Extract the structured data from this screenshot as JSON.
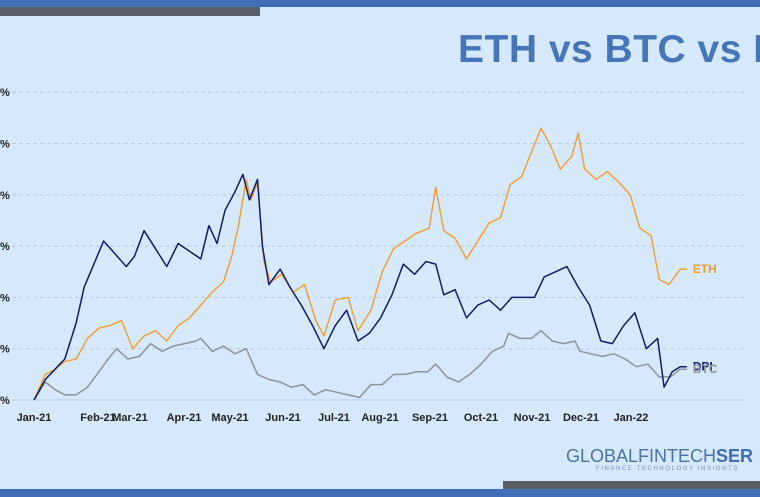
{
  "title": "ETH vs BTC vs D",
  "logo": {
    "part1": "GLOBALFINTECH",
    "part2": "SER",
    "tagline": "FINANCE TECHNOLOGY INSIGHTS"
  },
  "colors": {
    "background": "#d6e8fb",
    "top_bar_blue": "#3f6fb6",
    "top_bar_gray": "#5a5f66",
    "eth": "#f29d2a",
    "dpi": "#101b6b",
    "btc": "#8f9296",
    "grid": "#b8cadd",
    "title": "#4776b8"
  },
  "chart_data": {
    "type": "line",
    "x_tick_labels": [
      "Jan-21",
      "Feb-21",
      "Mar-21",
      "Apr-21",
      "May-21",
      "Jun-21",
      "Jul-21",
      "Aug-21",
      "Sep-21",
      "Oct-21",
      "Nov-21",
      "Dec-21",
      "Jan-22"
    ],
    "y_tick_labels": [
      "%",
      "%",
      "%",
      "%",
      "%",
      "%",
      "%"
    ],
    "y_gridlines": 7,
    "grid": "horizontal dashed",
    "legend": "inline labels at right end of each series",
    "x_start": "2021-01-01",
    "x_end": "2022-02-10",
    "series": [
      {
        "name": "ETH",
        "points": [
          [
            "2021-01-01",
            0
          ],
          [
            "2021-01-08",
            0.5
          ],
          [
            "2021-01-14",
            0.6
          ],
          [
            "2021-01-20",
            0.75
          ],
          [
            "2021-01-27",
            0.8
          ],
          [
            "2021-02-03",
            1.2
          ],
          [
            "2021-02-10",
            1.4
          ],
          [
            "2021-02-17",
            1.45
          ],
          [
            "2021-02-24",
            1.55
          ],
          [
            "2021-03-03",
            1.0
          ],
          [
            "2021-03-10",
            1.25
          ],
          [
            "2021-03-17",
            1.35
          ],
          [
            "2021-03-24",
            1.15
          ],
          [
            "2021-03-31",
            1.45
          ],
          [
            "2021-04-07",
            1.6
          ],
          [
            "2021-04-14",
            1.85
          ],
          [
            "2021-04-21",
            2.1
          ],
          [
            "2021-04-28",
            2.3
          ],
          [
            "2021-05-03",
            2.8
          ],
          [
            "2021-05-07",
            3.35
          ],
          [
            "2021-05-12",
            4.3
          ],
          [
            "2021-05-15",
            3.9
          ],
          [
            "2021-05-19",
            4.25
          ],
          [
            "2021-05-23",
            2.7
          ],
          [
            "2021-05-27",
            2.3
          ],
          [
            "2021-06-03",
            2.45
          ],
          [
            "2021-06-10",
            2.1
          ],
          [
            "2021-06-17",
            2.25
          ],
          [
            "2021-06-24",
            1.55
          ],
          [
            "2021-06-29",
            1.25
          ],
          [
            "2021-07-06",
            1.95
          ],
          [
            "2021-07-14",
            2.0
          ],
          [
            "2021-07-20",
            1.35
          ],
          [
            "2021-07-28",
            1.75
          ],
          [
            "2021-08-04",
            2.5
          ],
          [
            "2021-08-11",
            2.95
          ],
          [
            "2021-08-18",
            3.1
          ],
          [
            "2021-08-25",
            3.25
          ],
          [
            "2021-09-02",
            3.35
          ],
          [
            "2021-09-06",
            4.15
          ],
          [
            "2021-09-11",
            3.3
          ],
          [
            "2021-09-18",
            3.15
          ],
          [
            "2021-09-25",
            2.75
          ],
          [
            "2021-10-02",
            3.1
          ],
          [
            "2021-10-09",
            3.45
          ],
          [
            "2021-10-16",
            3.55
          ],
          [
            "2021-10-22",
            4.2
          ],
          [
            "2021-10-29",
            4.35
          ],
          [
            "2021-11-05",
            4.9
          ],
          [
            "2021-11-10",
            5.3
          ],
          [
            "2021-11-16",
            4.95
          ],
          [
            "2021-11-22",
            4.5
          ],
          [
            "2021-11-29",
            4.75
          ],
          [
            "2021-12-03",
            5.2
          ],
          [
            "2021-12-07",
            4.5
          ],
          [
            "2021-12-14",
            4.3
          ],
          [
            "2021-12-21",
            4.45
          ],
          [
            "2021-12-28",
            4.25
          ],
          [
            "2022-01-04",
            4.0
          ],
          [
            "2022-01-10",
            3.35
          ],
          [
            "2022-01-17",
            3.2
          ],
          [
            "2022-01-22",
            2.35
          ],
          [
            "2022-01-28",
            2.25
          ],
          [
            "2022-02-04",
            2.55
          ],
          [
            "2022-02-08",
            2.55
          ]
        ]
      },
      {
        "name": "DPI",
        "points": [
          [
            "2021-01-01",
            0
          ],
          [
            "2021-01-08",
            0.4
          ],
          [
            "2021-01-14",
            0.6
          ],
          [
            "2021-01-20",
            0.8
          ],
          [
            "2021-01-27",
            1.5
          ],
          [
            "2021-02-01",
            2.2
          ],
          [
            "2021-02-07",
            2.65
          ],
          [
            "2021-02-13",
            3.1
          ],
          [
            "2021-02-20",
            2.85
          ],
          [
            "2021-02-27",
            2.6
          ],
          [
            "2021-03-04",
            2.8
          ],
          [
            "2021-03-10",
            3.3
          ],
          [
            "2021-03-17",
            2.95
          ],
          [
            "2021-03-24",
            2.6
          ],
          [
            "2021-03-31",
            3.05
          ],
          [
            "2021-04-07",
            2.9
          ],
          [
            "2021-04-14",
            2.75
          ],
          [
            "2021-04-19",
            3.4
          ],
          [
            "2021-04-24",
            3.05
          ],
          [
            "2021-04-29",
            3.7
          ],
          [
            "2021-05-05",
            4.05
          ],
          [
            "2021-05-10",
            4.4
          ],
          [
            "2021-05-14",
            3.9
          ],
          [
            "2021-05-19",
            4.3
          ],
          [
            "2021-05-22",
            3.0
          ],
          [
            "2021-05-26",
            2.25
          ],
          [
            "2021-06-02",
            2.55
          ],
          [
            "2021-06-08",
            2.2
          ],
          [
            "2021-06-15",
            1.85
          ],
          [
            "2021-06-22",
            1.45
          ],
          [
            "2021-06-29",
            1.0
          ],
          [
            "2021-07-06",
            1.45
          ],
          [
            "2021-07-13",
            1.75
          ],
          [
            "2021-07-20",
            1.15
          ],
          [
            "2021-07-27",
            1.3
          ],
          [
            "2021-08-03",
            1.6
          ],
          [
            "2021-08-10",
            2.05
          ],
          [
            "2021-08-17",
            2.65
          ],
          [
            "2021-08-24",
            2.45
          ],
          [
            "2021-08-31",
            2.7
          ],
          [
            "2021-09-06",
            2.65
          ],
          [
            "2021-09-11",
            2.05
          ],
          [
            "2021-09-18",
            2.15
          ],
          [
            "2021-09-25",
            1.6
          ],
          [
            "2021-10-02",
            1.85
          ],
          [
            "2021-10-09",
            1.95
          ],
          [
            "2021-10-16",
            1.75
          ],
          [
            "2021-10-23",
            2.0
          ],
          [
            "2021-10-30",
            2.0
          ],
          [
            "2021-11-06",
            2.0
          ],
          [
            "2021-11-12",
            2.4
          ],
          [
            "2021-11-19",
            2.5
          ],
          [
            "2021-11-26",
            2.6
          ],
          [
            "2021-12-03",
            2.2
          ],
          [
            "2021-12-10",
            1.85
          ],
          [
            "2021-12-17",
            1.15
          ],
          [
            "2021-12-24",
            1.1
          ],
          [
            "2021-12-31",
            1.45
          ],
          [
            "2022-01-07",
            1.7
          ],
          [
            "2022-01-14",
            1.0
          ],
          [
            "2022-01-21",
            1.2
          ],
          [
            "2022-01-25",
            0.25
          ],
          [
            "2022-01-30",
            0.55
          ],
          [
            "2022-02-04",
            0.65
          ],
          [
            "2022-02-08",
            0.65
          ]
        ]
      },
      {
        "name": "BTC",
        "points": [
          [
            "2021-01-01",
            0
          ],
          [
            "2021-01-08",
            0.35
          ],
          [
            "2021-01-14",
            0.2
          ],
          [
            "2021-01-20",
            0.1
          ],
          [
            "2021-01-27",
            0.1
          ],
          [
            "2021-02-03",
            0.25
          ],
          [
            "2021-02-10",
            0.55
          ],
          [
            "2021-02-17",
            0.85
          ],
          [
            "2021-02-21",
            1.0
          ],
          [
            "2021-02-28",
            0.8
          ],
          [
            "2021-03-07",
            0.85
          ],
          [
            "2021-03-14",
            1.1
          ],
          [
            "2021-03-21",
            0.95
          ],
          [
            "2021-03-28",
            1.05
          ],
          [
            "2021-04-04",
            1.1
          ],
          [
            "2021-04-11",
            1.15
          ],
          [
            "2021-04-14",
            1.2
          ],
          [
            "2021-04-21",
            0.95
          ],
          [
            "2021-04-28",
            1.05
          ],
          [
            "2021-05-05",
            0.9
          ],
          [
            "2021-05-12",
            1.0
          ],
          [
            "2021-05-19",
            0.5
          ],
          [
            "2021-05-26",
            0.4
          ],
          [
            "2021-06-02",
            0.35
          ],
          [
            "2021-06-09",
            0.25
          ],
          [
            "2021-06-16",
            0.3
          ],
          [
            "2021-06-23",
            0.1
          ],
          [
            "2021-06-30",
            0.2
          ],
          [
            "2021-07-07",
            0.15
          ],
          [
            "2021-07-14",
            0.1
          ],
          [
            "2021-07-21",
            0.05
          ],
          [
            "2021-07-28",
            0.3
          ],
          [
            "2021-08-04",
            0.3
          ],
          [
            "2021-08-11",
            0.5
          ],
          [
            "2021-08-18",
            0.5
          ],
          [
            "2021-08-25",
            0.55
          ],
          [
            "2021-09-01",
            0.55
          ],
          [
            "2021-09-06",
            0.7
          ],
          [
            "2021-09-13",
            0.45
          ],
          [
            "2021-09-20",
            0.35
          ],
          [
            "2021-09-27",
            0.5
          ],
          [
            "2021-10-04",
            0.7
          ],
          [
            "2021-10-11",
            0.95
          ],
          [
            "2021-10-18",
            1.05
          ],
          [
            "2021-10-21",
            1.3
          ],
          [
            "2021-10-28",
            1.2
          ],
          [
            "2021-11-04",
            1.2
          ],
          [
            "2021-11-10",
            1.35
          ],
          [
            "2021-11-17",
            1.15
          ],
          [
            "2021-11-24",
            1.1
          ],
          [
            "2021-12-01",
            1.15
          ],
          [
            "2021-12-04",
            0.95
          ],
          [
            "2021-12-11",
            0.9
          ],
          [
            "2021-12-18",
            0.85
          ],
          [
            "2021-12-25",
            0.9
          ],
          [
            "2022-01-01",
            0.8
          ],
          [
            "2022-01-08",
            0.65
          ],
          [
            "2022-01-15",
            0.7
          ],
          [
            "2022-01-22",
            0.45
          ],
          [
            "2022-01-29",
            0.45
          ],
          [
            "2022-02-04",
            0.6
          ],
          [
            "2022-02-08",
            0.6
          ]
        ]
      }
    ]
  }
}
